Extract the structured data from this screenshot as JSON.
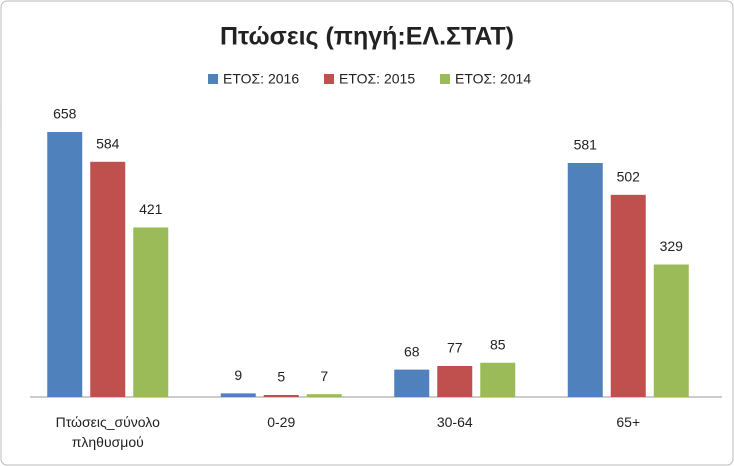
{
  "chart_data": {
    "type": "bar",
    "title": "Πτώσεις (πηγή:ΕΛ.ΣΤΑΤ)",
    "categories": [
      "Πτώσεις_σύνολο πληθυσμού",
      "0-29",
      "30-64",
      "65+"
    ],
    "series": [
      {
        "name": "ΕΤΟΣ: 2016",
        "color": "#4f81bd",
        "values": [
          658,
          9,
          68,
          581
        ]
      },
      {
        "name": "ΕΤΟΣ: 2015",
        "color": "#c0504d",
        "values": [
          584,
          5,
          77,
          502
        ]
      },
      {
        "name": "ΕΤΟΣ: 2014",
        "color": "#9bbb59",
        "values": [
          421,
          7,
          85,
          329
        ]
      }
    ],
    "legend": "top"
  }
}
